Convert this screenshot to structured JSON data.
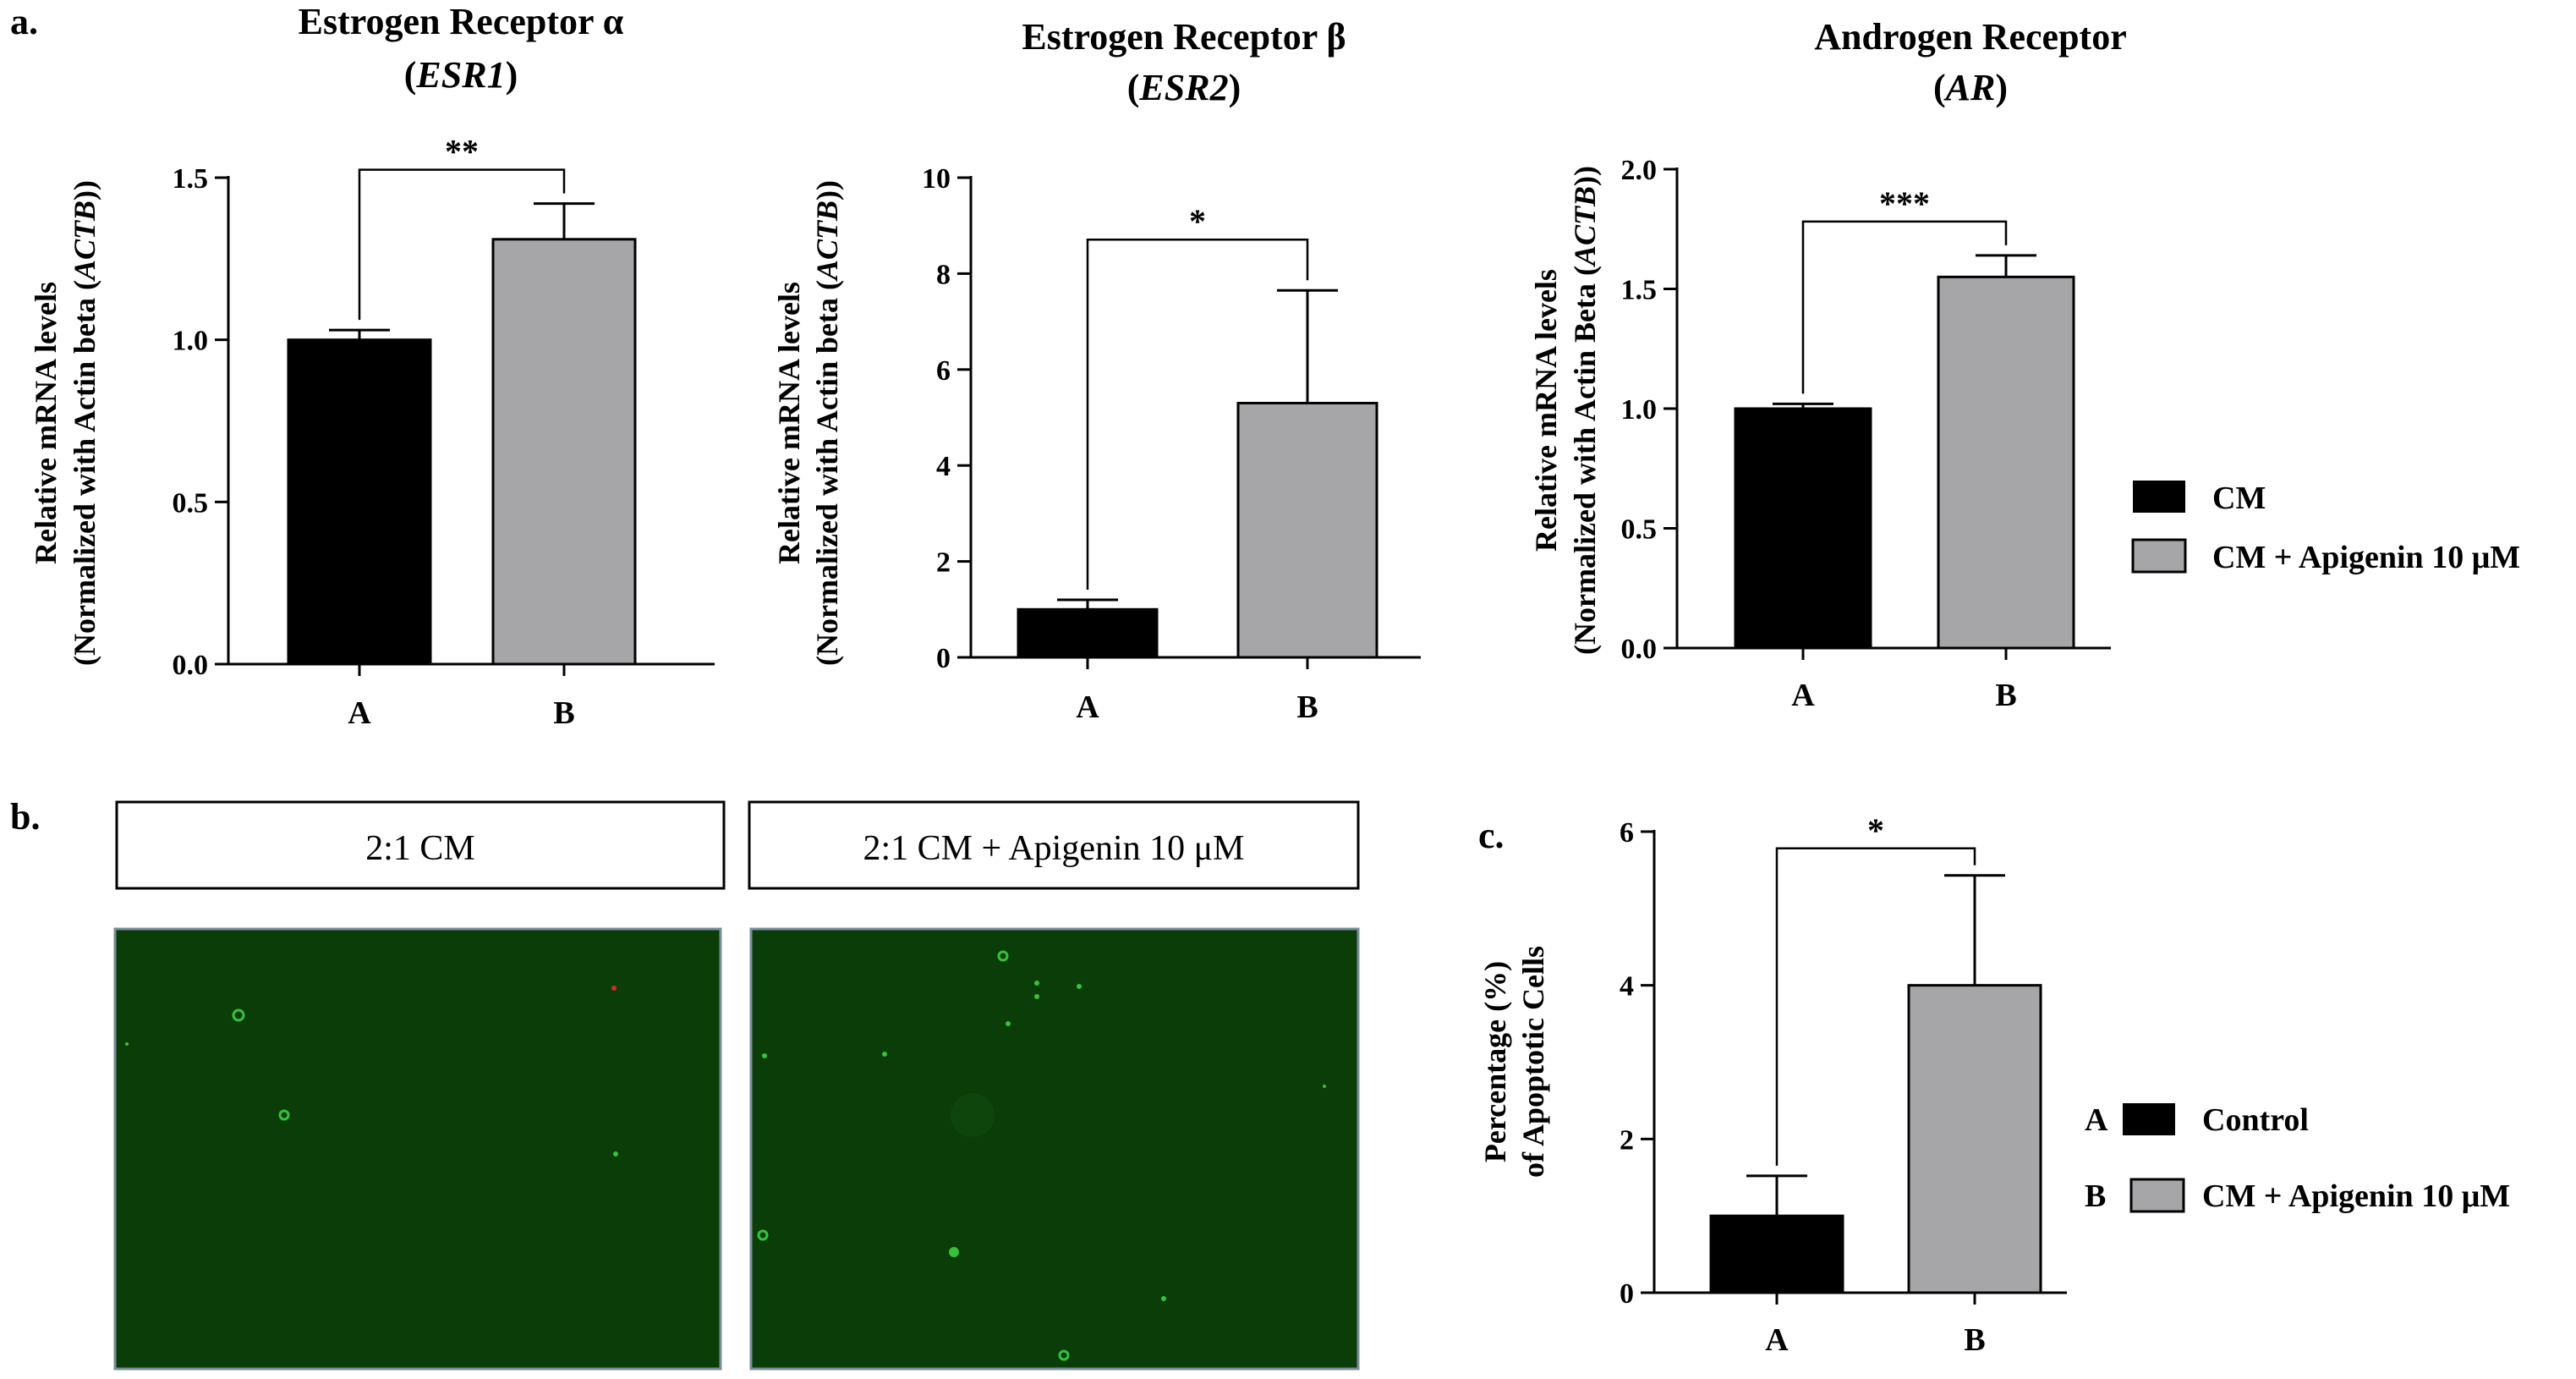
{
  "panel_labels": {
    "a": "a.",
    "b": "b.",
    "c": "c."
  },
  "colors": {
    "group_a": "#000000",
    "group_b": "#a6a6a8",
    "micro_bg": "#0b3d09",
    "micro_cell": "#36c23a",
    "micro_red": "#d03020"
  },
  "legend_top": {
    "items": [
      {
        "label": "CM",
        "color": "#000000"
      },
      {
        "label": "CM + Apigenin 10 μM",
        "color": "#a6a6a8"
      }
    ]
  },
  "legend_c": {
    "items": [
      {
        "key": "A",
        "label": "Control",
        "color": "#000000"
      },
      {
        "key": "B",
        "label": "CM + Apigenin 10 μM",
        "color": "#a6a6a8"
      }
    ]
  },
  "micrographs": {
    "left_label": "2:1 CM",
    "right_label": "2:1 CM + Apigenin 10 μM",
    "description_icon": "fluorescence-micrograph"
  },
  "chart_data": [
    {
      "type": "bar",
      "title_line1": "Estrogen Receptor α",
      "title_line2": "ESR1",
      "ylabel_line1": "Relative mRNA levels",
      "ylabel_line2_pre": "(Normalized with Actin beta (",
      "ylabel_line2_italic": "ACTB",
      "ylabel_line2_post": "))",
      "categories": [
        "A",
        "B"
      ],
      "values": [
        1.0,
        1.31
      ],
      "errors": [
        0.03,
        0.11
      ],
      "ylim": [
        0,
        1.5
      ],
      "yticks": [
        "0.0",
        "0.5",
        "1.0",
        "1.5"
      ],
      "significance": "**"
    },
    {
      "type": "bar",
      "title_line1": "Estrogen Receptor β",
      "title_line2": "ESR2",
      "ylabel_line1": "Relative mRNA levels",
      "ylabel_line2_pre": "(Normalized with Actin beta (",
      "ylabel_line2_italic": "ACTB",
      "ylabel_line2_post": "))",
      "categories": [
        "A",
        "B"
      ],
      "values": [
        1.0,
        5.3
      ],
      "errors": [
        0.2,
        2.35
      ],
      "ylim": [
        0,
        10
      ],
      "yticks": [
        "0",
        "2",
        "4",
        "6",
        "8",
        "10"
      ],
      "significance": "*"
    },
    {
      "type": "bar",
      "title_line1": "Androgen Receptor",
      "title_line2": "AR",
      "ylabel_line1": "Relative mRNA levels",
      "ylabel_line2_pre": "(Normalized with Actin Beta (",
      "ylabel_line2_italic": "ACTB",
      "ylabel_line2_post": "))",
      "categories": [
        "A",
        "B"
      ],
      "values": [
        1.0,
        1.55
      ],
      "errors": [
        0.02,
        0.09
      ],
      "ylim": [
        0,
        2.0
      ],
      "yticks": [
        "0.0",
        "0.5",
        "1.0",
        "1.5",
        "2.0"
      ],
      "significance": "***"
    },
    {
      "type": "bar",
      "title_line1": "",
      "title_line2": "",
      "ylabel_line1": "Percentage (%)",
      "ylabel_line2_pre": "of Apoptotic Cells",
      "ylabel_line2_italic": "",
      "ylabel_line2_post": "",
      "categories": [
        "A",
        "B"
      ],
      "values": [
        1.0,
        4.0
      ],
      "errors": [
        0.52,
        1.43
      ],
      "ylim": [
        0,
        6
      ],
      "yticks": [
        "0",
        "2",
        "4",
        "6"
      ],
      "significance": "*"
    }
  ]
}
